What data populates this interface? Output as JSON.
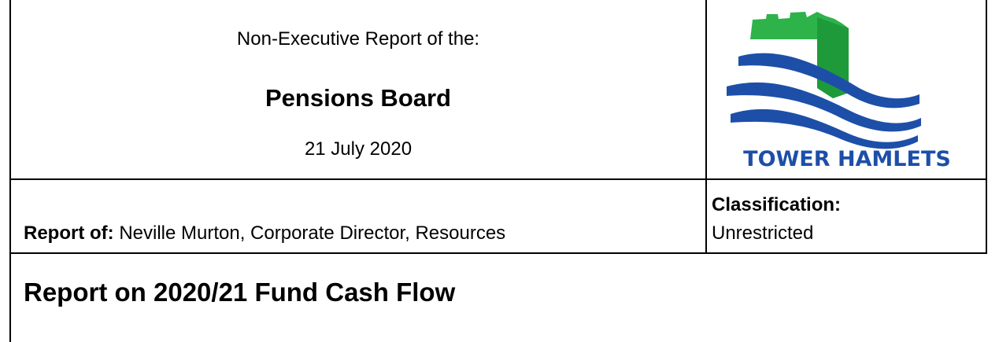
{
  "header": {
    "intro": "Non-Executive Report of the:",
    "committee": "Pensions Board",
    "date": "21 July 2020",
    "logo_text": "TOWER HAMLETS"
  },
  "report_of": {
    "label": "Report of:",
    "value": "Neville Murton, Corporate Director, Resources"
  },
  "classification": {
    "label": "Classification:",
    "value": "Unrestricted"
  },
  "title": "Report on 2020/21 Fund Cash Flow"
}
